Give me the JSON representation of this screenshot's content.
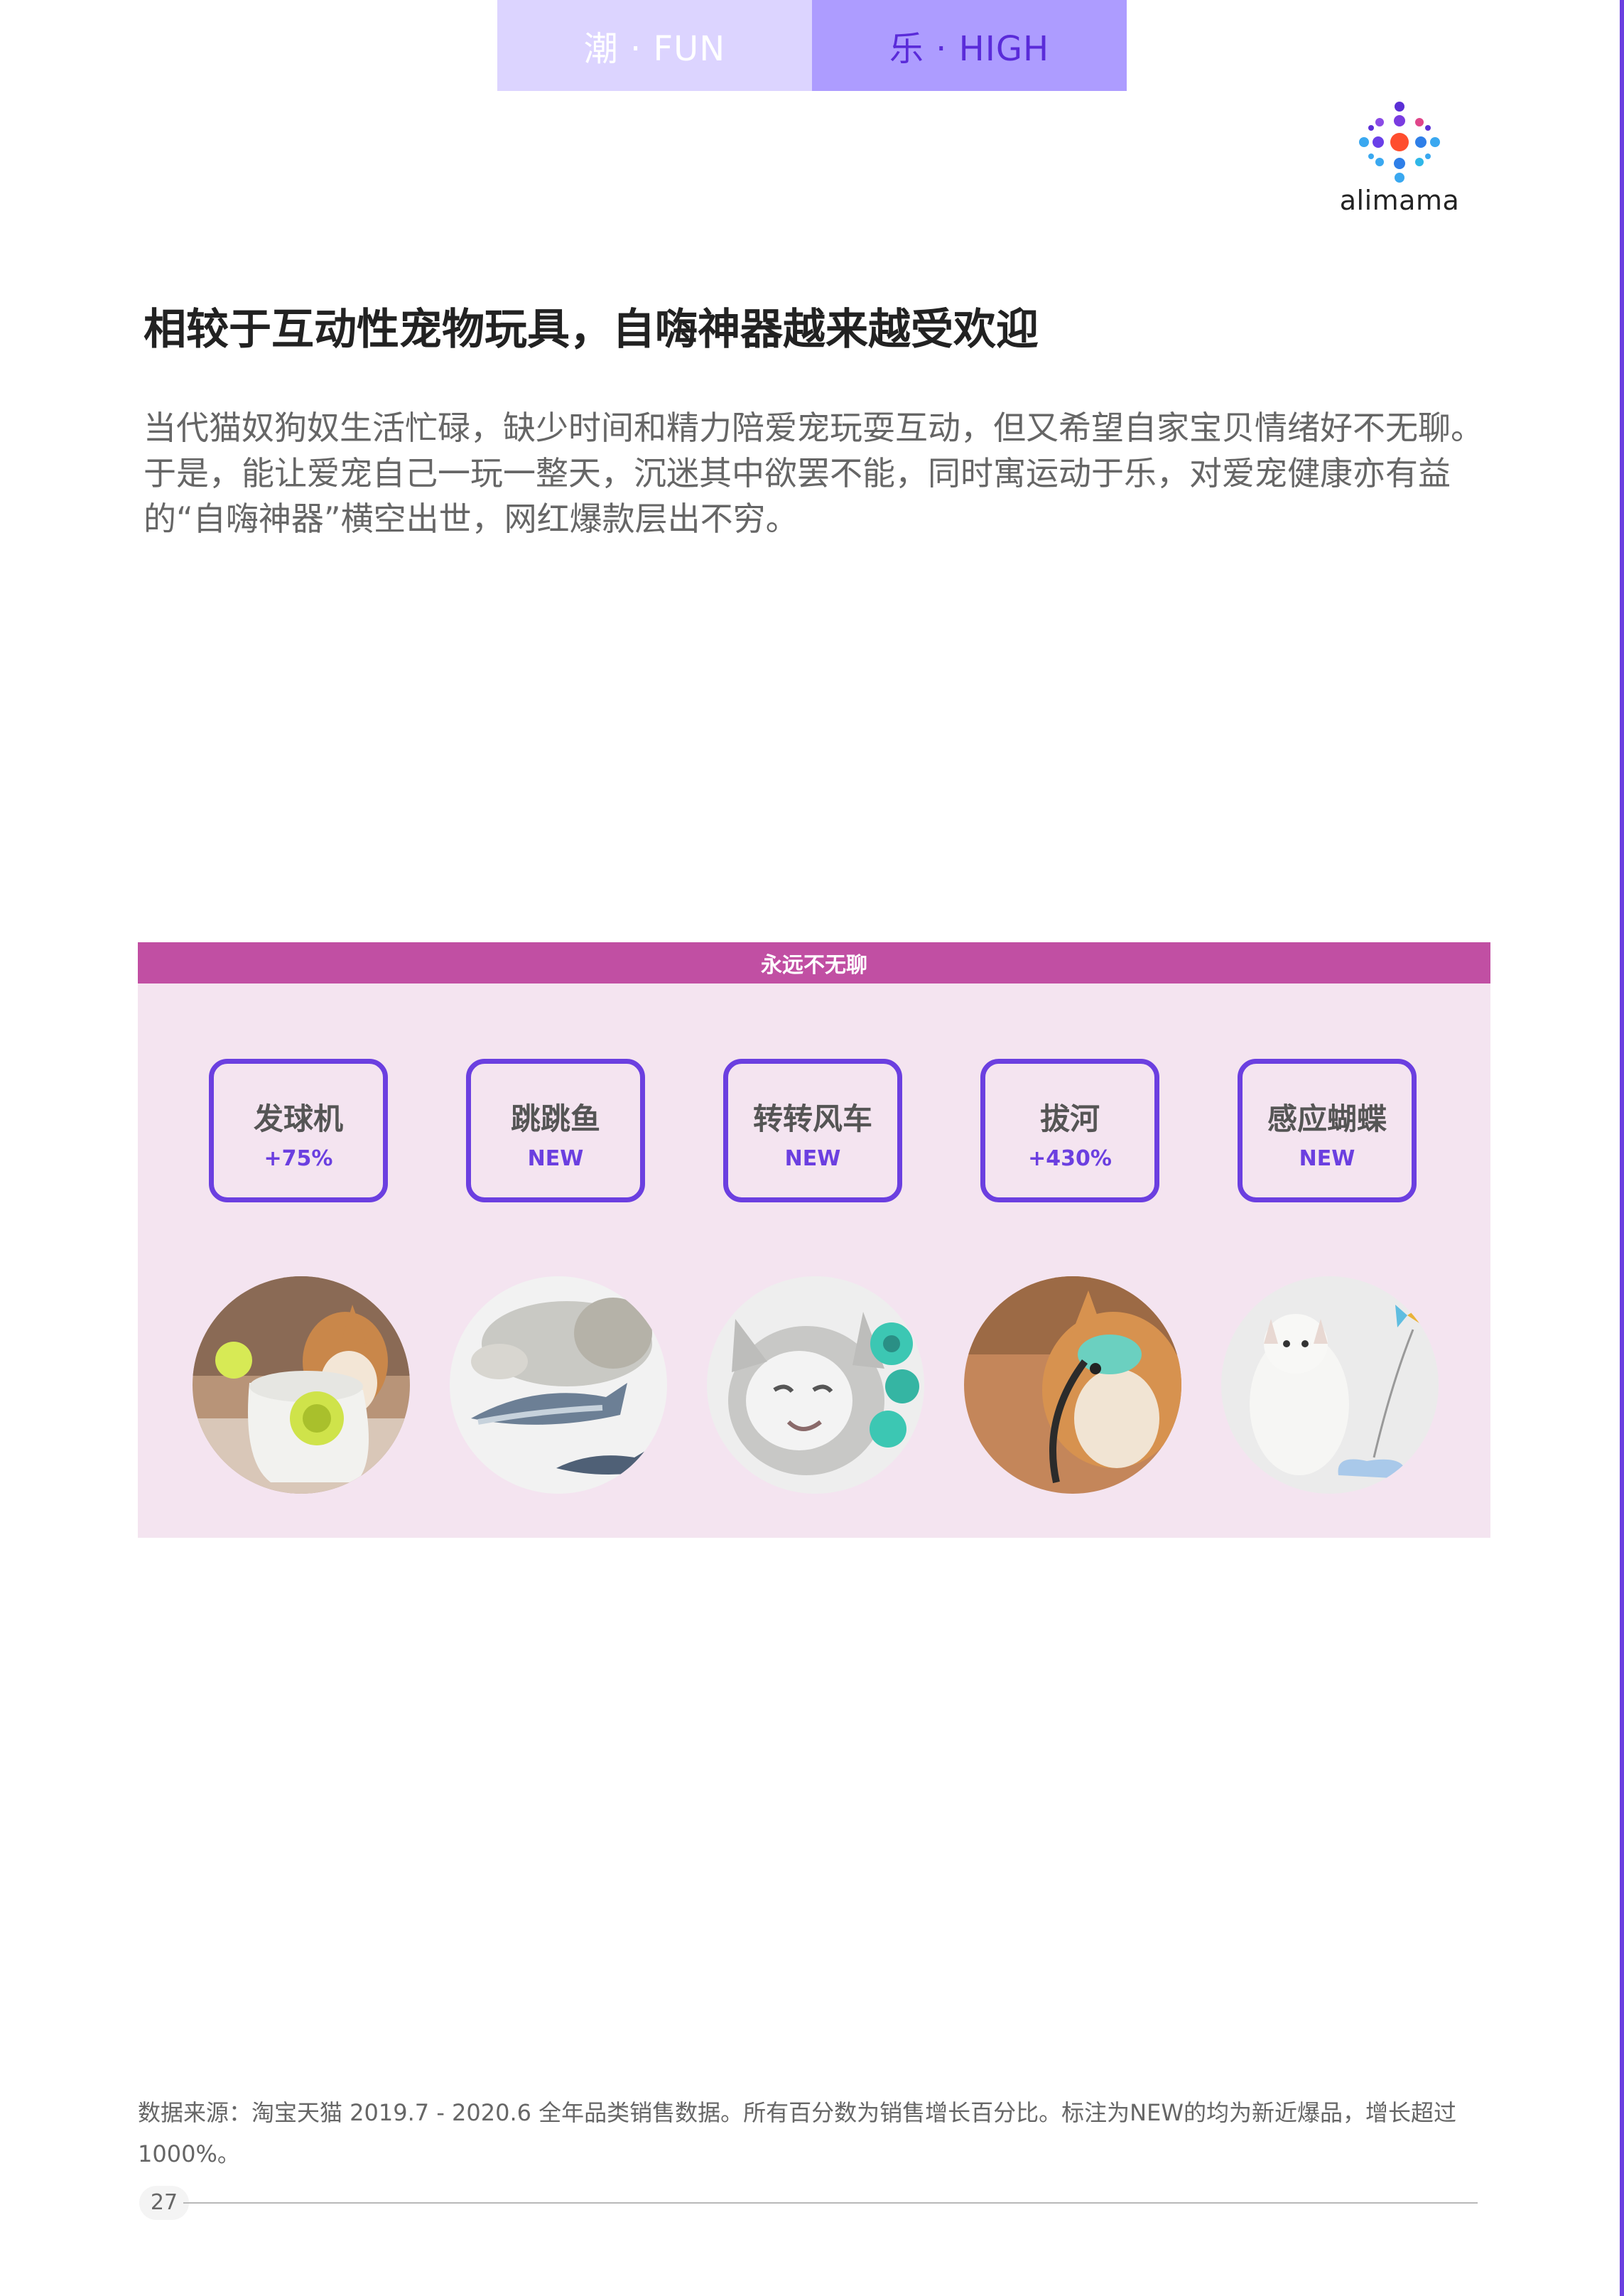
{
  "tabs": {
    "fun_label": "潮 · FUN",
    "high_label": "乐 · HIGH"
  },
  "brand": {
    "logo_text": "alimama"
  },
  "section": {
    "title": "相较于互动性宠物玩具，自嗨神器越来越受欢迎",
    "body": "当代猫奴狗奴生活忙碌，缺少时间和精力陪爱宠玩耍互动，但又希望自家宝贝情绪好不无聊。于是，能让爱宠自己一玩一整天，沉迷其中欲罢不能，同时寓运动于乐，对爱宠健康亦有益的“自嗨神器”横空出世，网红爆款层出不穷。"
  },
  "panel": {
    "header": "永远不无聊",
    "items": [
      {
        "name": "发球机",
        "growth": "+75%",
        "photo_icon": "dog-ball-launcher-photo"
      },
      {
        "name": "跳跳鱼",
        "growth": "NEW",
        "photo_icon": "cat-fish-toy-photo"
      },
      {
        "name": "转转风车",
        "growth": "NEW",
        "photo_icon": "cat-windmill-toy-photo"
      },
      {
        "name": "拔河",
        "growth": "+430%",
        "photo_icon": "dog-tug-toy-photo"
      },
      {
        "name": "感应蝴蝶",
        "growth": "NEW",
        "photo_icon": "cat-butterfly-toy-photo"
      }
    ]
  },
  "footnote": "数据来源：淘宝天猫 2019.7 - 2020.6 全年品类销售数据。所有百分数为销售增长百分比。标注为NEW的均为新近爆品，增长超过1000%。",
  "page_number": "27",
  "colors": {
    "accent_purple": "#6b3fe0",
    "panel_header": "#c14fa3",
    "panel_bg": "#f4e4f0",
    "tab_fun_bg": "#dcd4ff",
    "tab_high_bg": "#ad9cff"
  }
}
